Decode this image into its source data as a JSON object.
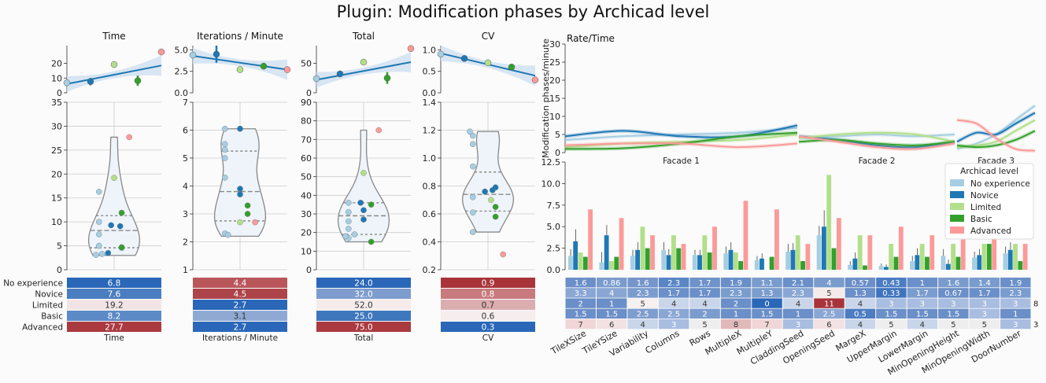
{
  "suptitle": "Plugin: Modification phases by Archicad level",
  "levels": [
    "No experience",
    "Novice",
    "Limited",
    "Basic",
    "Advanced"
  ],
  "level_colors": [
    "#a6cee3",
    "#1f78b4",
    "#b2df8a",
    "#33a02c",
    "#fb9a99"
  ],
  "panels": [
    {
      "title": "Time",
      "xlabel": "Time",
      "reg": {
        "ylim": [
          0,
          32
        ],
        "ticks": [
          0,
          10,
          20
        ],
        "means": [
          6.8,
          7.6,
          19.2,
          8.2,
          27.7
        ],
        "err": [
          0.6,
          2.5,
          0.8,
          3.5,
          0.5
        ],
        "fit": [
          6.0,
          18.5
        ]
      },
      "violin": {
        "ylim": [
          0,
          35
        ],
        "ticks": [
          0,
          5,
          10,
          15,
          20,
          25,
          30,
          35
        ],
        "range": [
          3,
          27.7
        ],
        "quartiles": [
          4.6,
          8.2,
          11.3
        ],
        "points": [
          [
            0,
            3.1,
            -0.12
          ],
          [
            0,
            3.3,
            -0.08
          ],
          [
            0,
            5,
            -0.1
          ],
          [
            0,
            7.4,
            -0.1
          ],
          [
            0,
            10,
            -0.1
          ],
          [
            0,
            16.3,
            -0.1
          ],
          [
            1,
            3.5,
            -0.04
          ],
          [
            1,
            4.6,
            0.05
          ],
          [
            1,
            9.3,
            -0.02
          ],
          [
            1,
            9.1,
            0.04
          ],
          [
            2,
            19.2,
            0
          ],
          [
            3,
            4.7,
            0.05
          ],
          [
            3,
            11.9,
            0.05
          ],
          [
            4,
            27.7,
            0.1
          ]
        ]
      },
      "table": {
        "values": [
          "6.8",
          "7.6",
          "19.2",
          "8.2",
          "27.7"
        ],
        "colors": [
          "#2a67b8",
          "#4b7ec0",
          "#f2e4e4",
          "#5c8ac6",
          "#aa3a40"
        ]
      }
    },
    {
      "title": "Iterations / Minute",
      "xlabel": "Iterations / Minute",
      "reg": {
        "ylim": [
          0,
          5.5
        ],
        "ticks": [
          0.0,
          2.5,
          5.0
        ],
        "means": [
          4.4,
          4.5,
          2.7,
          3.1,
          2.7
        ],
        "err": [
          0.3,
          1.0,
          0.2,
          0.1,
          0.1
        ],
        "fit": [
          4.3,
          2.7
        ]
      },
      "violin": {
        "ylim": [
          1,
          7
        ],
        "ticks": [
          1,
          2,
          3,
          4,
          5,
          6,
          7
        ],
        "range": [
          2.2,
          6.05
        ],
        "quartiles": [
          2.75,
          3.8,
          5.25
        ],
        "points": [
          [
            0,
            2.3,
            -0.1
          ],
          [
            0,
            2.25,
            -0.08
          ],
          [
            0,
            4.3,
            -0.1
          ],
          [
            0,
            5.0,
            -0.1
          ],
          [
            0,
            5.3,
            -0.1
          ],
          [
            0,
            5.5,
            -0.1
          ],
          [
            0,
            6.05,
            -0.1
          ],
          [
            1,
            3.7,
            0
          ],
          [
            1,
            3.9,
            0
          ],
          [
            1,
            6.05,
            0
          ],
          [
            2,
            2.7,
            0
          ],
          [
            3,
            3.0,
            0.05
          ],
          [
            3,
            3.3,
            0.05
          ],
          [
            4,
            2.7,
            0.1
          ]
        ]
      },
      "table": {
        "values": [
          "4.4",
          "4.5",
          "2.7",
          "3.1",
          "2.7"
        ],
        "colors": [
          "#b9565a",
          "#ad4449",
          "#2a67b8",
          "#8fa9d3",
          "#2a67b8"
        ]
      }
    },
    {
      "title": "Total",
      "xlabel": "Total",
      "reg": {
        "ylim": [
          0,
          80
        ],
        "ticks": [
          0,
          50
        ],
        "means": [
          24.0,
          32.0,
          52.0,
          25.0,
          75.0
        ],
        "err": [
          2.0,
          4.0,
          1.5,
          10.0,
          1.5
        ],
        "fit": [
          22,
          52
        ]
      },
      "violin": {
        "ylim": [
          0,
          90
        ],
        "ticks": [
          0,
          10,
          20,
          30,
          40,
          50,
          60,
          70,
          80,
          90
        ],
        "range": [
          15,
          75
        ],
        "quartiles": [
          19,
          29,
          36
        ],
        "points": [
          [
            0,
            17,
            -0.1
          ],
          [
            0,
            19,
            -0.06
          ],
          [
            0,
            22,
            -0.1
          ],
          [
            0,
            26,
            -0.1
          ],
          [
            0,
            31,
            -0.1
          ],
          [
            0,
            36,
            -0.1
          ],
          [
            0,
            18,
            -0.12
          ],
          [
            1,
            27,
            0
          ],
          [
            1,
            32,
            0
          ],
          [
            1,
            36,
            -0.02
          ],
          [
            2,
            52,
            0
          ],
          [
            3,
            15,
            0.05
          ],
          [
            3,
            35,
            0.05
          ],
          [
            4,
            75,
            0.1
          ]
        ]
      },
      "table": {
        "values": [
          "24.0",
          "32.0",
          "52.0",
          "25.0",
          "75.0"
        ],
        "colors": [
          "#2a67b8",
          "#7e9ccd",
          "#f5ebeb",
          "#3f77bd",
          "#aa3a40"
        ]
      }
    },
    {
      "title": "CV",
      "xlabel": "CV",
      "reg": {
        "ylim": [
          0,
          1.1
        ],
        "ticks": [
          0.0,
          0.5,
          1.0
        ],
        "means": [
          0.9,
          0.8,
          0.7,
          0.6,
          0.3
        ],
        "err": [
          0.05,
          0.03,
          0.02,
          0.02,
          0.02
        ],
        "fit": [
          0.92,
          0.4
        ]
      },
      "violin": {
        "ylim": [
          0.2,
          1.4
        ],
        "ticks": [
          0.2,
          0.4,
          0.6,
          0.8,
          1.0,
          1.2,
          1.4
        ],
        "range": [
          0.47,
          1.19
        ],
        "quartiles": [
          0.62,
          0.74,
          0.9
        ],
        "points": [
          [
            0,
            0.47,
            -0.1
          ],
          [
            0,
            0.61,
            -0.1
          ],
          [
            0,
            0.72,
            -0.1
          ],
          [
            0,
            0.94,
            -0.1
          ],
          [
            0,
            1.1,
            -0.1
          ],
          [
            0,
            1.16,
            -0.1
          ],
          [
            0,
            1.19,
            -0.12
          ],
          [
            1,
            0.76,
            -0.02
          ],
          [
            1,
            0.77,
            0.03
          ],
          [
            1,
            0.79,
            0.05
          ],
          [
            2,
            0.7,
            0.02
          ],
          [
            3,
            0.58,
            0.05
          ],
          [
            3,
            0.65,
            0.05
          ],
          [
            4,
            0.31,
            0.1
          ]
        ]
      },
      "table": {
        "values": [
          "0.9",
          "0.8",
          "0.7",
          "0.6",
          "0.3"
        ],
        "colors": [
          "#a8343a",
          "#c97a7e",
          "#dcadaf",
          "#f6eeee",
          "#2a67b8"
        ]
      }
    }
  ],
  "rate_time": {
    "title": "Rate/Time",
    "ylabel": "Modification phases/minute",
    "ylim": [
      0,
      30
    ],
    "ticks": [
      0,
      5,
      10,
      15,
      20,
      25,
      30
    ],
    "facades": [
      {
        "label": "Facade 1",
        "curves": [
          [
            3.5,
            4.5,
            5.0,
            5.5,
            6.8
          ],
          [
            4.5,
            6.0,
            4.5,
            4.5,
            7.5
          ],
          [
            1.5,
            2.5,
            3.0,
            3.5,
            5.0
          ],
          [
            1.0,
            1.2,
            2.5,
            4.5,
            5.5
          ],
          [
            2.0,
            2.5,
            2.5,
            1.5,
            2.5
          ]
        ]
      },
      {
        "label": "Facade 2",
        "curves": [
          [
            4.0,
            4.5,
            5.0,
            4.5,
            5.0
          ],
          [
            4.5,
            3.5,
            2.0,
            1.5,
            3.0
          ],
          [
            4.0,
            5.0,
            5.5,
            5.0,
            3.0
          ],
          [
            3.0,
            3.5,
            2.5,
            2.0,
            3.0
          ],
          [
            4.5,
            3.0,
            1.5,
            1.0,
            2.5
          ]
        ]
      },
      {
        "label": "Facade 3",
        "curves": [
          [
            1.0,
            2.5,
            5.0,
            9.0,
            13.0
          ],
          [
            3.0,
            5.5,
            5.0,
            8.0,
            11.0
          ],
          [
            1.5,
            2.0,
            3.0,
            6.0,
            9.0
          ],
          [
            2.0,
            1.5,
            2.0,
            3.5,
            6.0
          ],
          [
            9.0,
            8.0,
            4.0,
            1.0,
            0.5
          ]
        ]
      }
    ]
  },
  "bars": {
    "ylim": [
      0,
      12.5
    ],
    "ticks": [
      0.0,
      2.5,
      5.0,
      7.5,
      10.0,
      12.5
    ],
    "categories": [
      "TileXSize",
      "TileYSize",
      "Variability",
      "Columns",
      "Rows",
      "MultipleX",
      "MultipleY",
      "CladdingSeed",
      "OpeningSeed",
      "MargeX",
      "UpperMargin",
      "LowerMargin",
      "MinOpeningHeight",
      "MinOpeningWidth",
      "DoorNumber"
    ],
    "series": [
      {
        "name": "No experience",
        "values": [
          1.6,
          0.86,
          1.6,
          2.3,
          1.7,
          1.9,
          1.1,
          2.1,
          4,
          0.57,
          0.43,
          1,
          1.6,
          1.4,
          1.9
        ]
      },
      {
        "name": "Novice",
        "values": [
          3.3,
          4,
          2.3,
          1.7,
          1.7,
          2.3,
          1.3,
          2.3,
          5,
          1.3,
          0.33,
          1.7,
          0.67,
          1.7,
          2.3
        ]
      },
      {
        "name": "Limited",
        "values": [
          2,
          1,
          5,
          4,
          4,
          2,
          0,
          4,
          11,
          4,
          3,
          3,
          3,
          3,
          3
        ]
      },
      {
        "name": "Basic",
        "values": [
          1.5,
          1.5,
          2.5,
          2.5,
          2,
          1,
          1.5,
          1,
          2.5,
          0.5,
          1.5,
          1.5,
          1.5,
          3,
          1
        ]
      },
      {
        "name": "Advanced",
        "values": [
          7,
          6,
          4,
          3,
          5,
          8,
          7,
          3,
          6,
          4,
          5,
          4,
          5,
          5,
          3
        ]
      }
    ],
    "errors": [
      [
        0.8,
        1.2,
        0.7,
        0.9,
        0.6,
        0.8,
        0.5,
        0.9,
        1.1,
        0.4,
        0.3,
        0.6,
        0.8,
        0.7,
        0.8
      ],
      [
        1.4,
        1.2,
        0.9,
        0.7,
        0.6,
        0.9,
        0.6,
        0.8,
        1.9,
        0.7,
        0.3,
        0.8,
        0.5,
        0.7,
        0.9
      ]
    ],
    "table_colors": [
      [
        "#6b8fc8",
        "#7a9ccd",
        "#7595cb",
        "#5a86c6",
        "#6f93c9",
        "#6b8fc8",
        "#7a9ccd",
        "#6b8fc8",
        "#7a9ccd",
        "#6b8fc8",
        "#4c7dc2",
        "#6b8fc8",
        "#7a9ccd",
        "#7a9ccd",
        "#6b8fc8"
      ],
      [
        "#8aa7d4",
        "#8aa7d4",
        "#7b9dce",
        "#6b8fc8",
        "#6b8fc8",
        "#7b9dce",
        "#7b9dce",
        "#8aa7d4",
        "#f5ebeb",
        "#6b8fc8",
        "#3f74bd",
        "#7b9dce",
        "#6b8fc8",
        "#6b8fc8",
        "#7b9dce"
      ],
      [
        "#6b8fc8",
        "#6b8fc8",
        "#f6f0f0",
        "#c9d5e9",
        "#c9d5e9",
        "#6b8fc8",
        "#2a67b8",
        "#c9d5e9",
        "#a8343a",
        "#c9d5e9",
        "#a9bde0",
        "#a9bde0",
        "#a9bde0",
        "#a9bde0",
        "#a9bde0"
      ],
      [
        "#6b8fc8",
        "#6b8fc8",
        "#7e9dce",
        "#8aa7d4",
        "#7b9dce",
        "#6b8fc8",
        "#6b8fc8",
        "#6b8fc8",
        "#8aa7d4",
        "#4c7dc2",
        "#6b8fc8",
        "#6b8fc8",
        "#6b8fc8",
        "#a9bde0",
        "#6b8fc8"
      ],
      [
        "#f0d6d7",
        "#f3e2e3",
        "#c9d5e9",
        "#a9bde0",
        "#eeeeee",
        "#e2b9bb",
        "#f0d6d7",
        "#a9bde0",
        "#f3e2e3",
        "#c9d5e9",
        "#eeeeee",
        "#c9d5e9",
        "#eeeeee",
        "#eeeeee",
        "#a9bde0"
      ]
    ],
    "extra_labels": [
      "8",
      "3"
    ],
    "legend_title": "Archicad level"
  }
}
